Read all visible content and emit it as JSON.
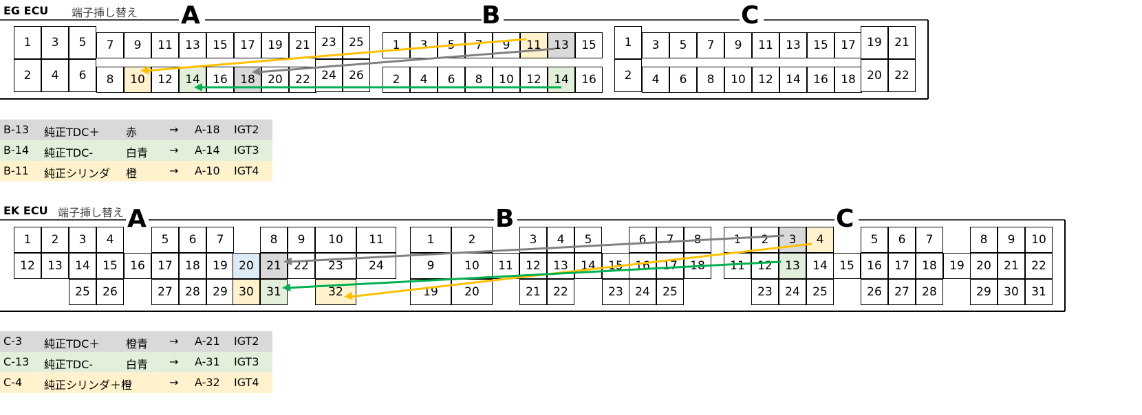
{
  "eg": {
    "title": "EG ECU",
    "subtitle": "端子挿し替え",
    "connectors": [
      "A",
      "B",
      "C"
    ],
    "A_top": [
      "1",
      "3",
      "5",
      "7",
      "9",
      "11",
      "13",
      "15",
      "17",
      "19",
      "21",
      "23",
      "25"
    ],
    "A_bot": [
      "2",
      "4",
      "6",
      "8",
      "10",
      "12",
      "14",
      "16",
      "18",
      "20",
      "22",
      "24",
      "26"
    ],
    "B_top": [
      "1",
      "3",
      "5",
      "7",
      "9",
      "11",
      "13",
      "15"
    ],
    "B_bot": [
      "2",
      "4",
      "6",
      "8",
      "10",
      "12",
      "14",
      "16"
    ],
    "C_top": [
      "1",
      "3",
      "5",
      "7",
      "9",
      "11",
      "13",
      "15",
      "17",
      "19",
      "21"
    ],
    "C_bot": [
      "2",
      "4",
      "6",
      "8",
      "10",
      "12",
      "14",
      "16",
      "18",
      "20",
      "22"
    ],
    "rows": [
      {
        "from": "B-13",
        "name": "純正TDC＋",
        "color": "赤",
        "arrow": "→",
        "to": "A-18",
        "sig": "IGT2",
        "bg": "#d9d9d9"
      },
      {
        "from": "B-14",
        "name": "純正TDC-",
        "color": "白青",
        "arrow": "→",
        "to": "A-14",
        "sig": "IGT3",
        "bg": "#e2efda"
      },
      {
        "from": "B-11",
        "name": "純正シリンダ",
        "color": "橙",
        "arrow": "→",
        "to": "A-10",
        "sig": "IGT4",
        "bg": "#fff2cc"
      }
    ]
  },
  "ek": {
    "title": "EK ECU",
    "subtitle": "端子挿し替え",
    "connectors": [
      "A",
      "B",
      "C"
    ],
    "A_r1": [
      "1",
      "2",
      "3",
      "4",
      "5",
      "6",
      "7",
      "8",
      "9",
      "10",
      "11"
    ],
    "A_r2": [
      "12",
      "13",
      "14",
      "15",
      "16",
      "17",
      "18",
      "19",
      "20",
      "21",
      "22",
      "23",
      "24"
    ],
    "A_r3": [
      "25",
      "26",
      "27",
      "28",
      "29",
      "30",
      "31",
      "32"
    ],
    "B_r1": [
      "1",
      "2",
      "3",
      "4",
      "5",
      "6",
      "7",
      "8"
    ],
    "B_r2": [
      "9",
      "10",
      "11",
      "12",
      "13",
      "14",
      "15",
      "16",
      "17",
      "18"
    ],
    "B_r3": [
      "19",
      "20",
      "21",
      "22",
      "23",
      "24",
      "25"
    ],
    "C_r1": [
      "1",
      "2",
      "3",
      "4",
      "5",
      "6",
      "7",
      "8",
      "9",
      "10"
    ],
    "C_r2": [
      "11",
      "12",
      "13",
      "14",
      "15",
      "16",
      "17",
      "18",
      "19",
      "20",
      "21",
      "22"
    ],
    "C_r3": [
      "23",
      "24",
      "25",
      "26",
      "27",
      "28",
      "29",
      "30",
      "31"
    ],
    "rows": [
      {
        "from": "C-3",
        "name": "純正TDC＋",
        "color": "橙青",
        "arrow": "→",
        "to": "A-21",
        "sig": "IGT2",
        "bg": "#d9d9d9"
      },
      {
        "from": "C-13",
        "name": "純正TDC-",
        "color": "白青",
        "arrow": "→",
        "to": "A-31",
        "sig": "IGT3",
        "bg": "#e2efda"
      },
      {
        "from": "C-4",
        "name": "純正シリンダ＋橙",
        "color": "",
        "arrow": "→",
        "to": "A-32",
        "sig": "IGT4",
        "bg": "#fff2cc"
      }
    ]
  },
  "colors": {
    "gray": "#d9d9d9",
    "green": "#e2efda",
    "yellow": "#fff2cc",
    "blue": "#ddebf7",
    "arrow_orange": "#ffc000",
    "arrow_gray": "#808080",
    "arrow_green": "#00b050"
  }
}
